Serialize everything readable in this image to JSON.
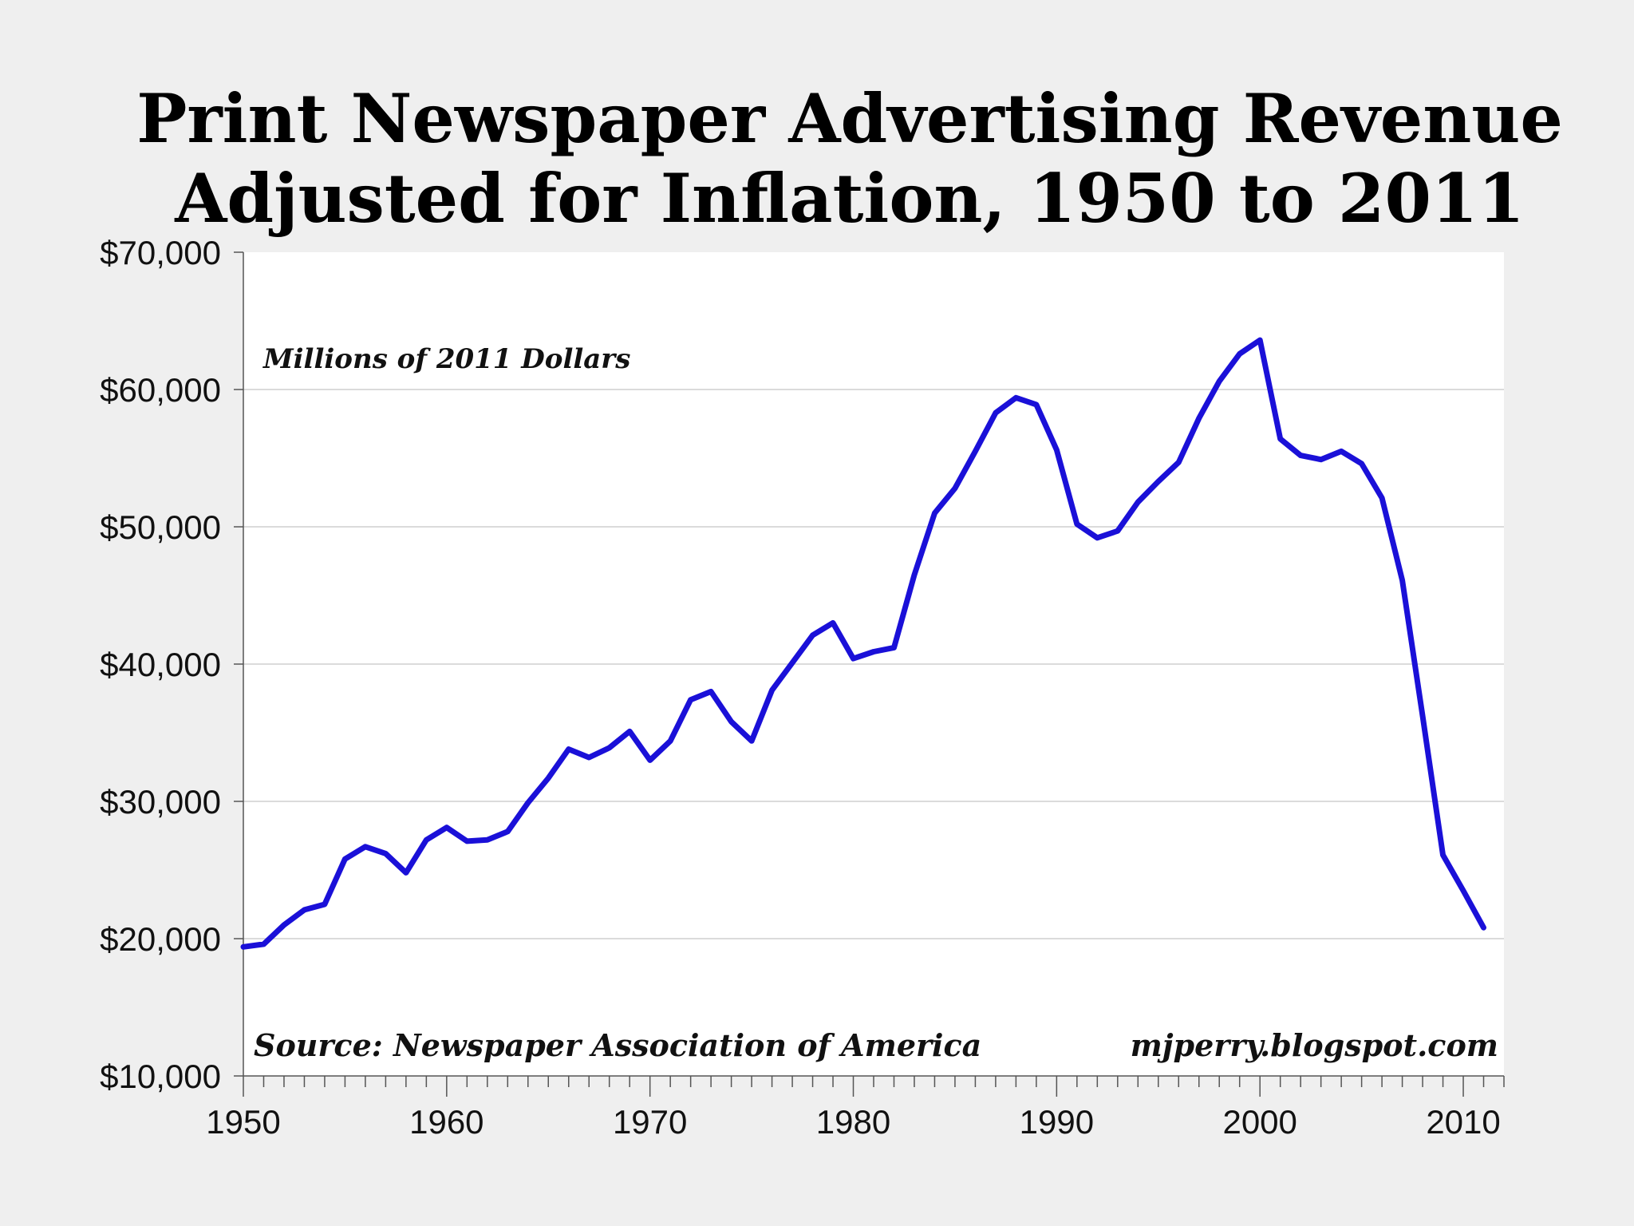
{
  "chart_data": {
    "type": "line",
    "title_line1": "Print Newspaper Advertising Revenue",
    "title_line2": "Adjusted for Inflation, 1950 to 2011",
    "unit_note": "Millions of 2011 Dollars",
    "source": "Source: Newspaper Association of America",
    "credit": "mjperry.blogspot.com",
    "xlabel": "",
    "ylabel": "",
    "xlim": [
      1950,
      2012
    ],
    "ylim": [
      10000,
      70000
    ],
    "x_ticks": [
      {
        "value": 1950,
        "label": "1950"
      },
      {
        "value": 1960,
        "label": "1960"
      },
      {
        "value": 1970,
        "label": "1970"
      },
      {
        "value": 1980,
        "label": "1980"
      },
      {
        "value": 1990,
        "label": "1990"
      },
      {
        "value": 2000,
        "label": "2000"
      },
      {
        "value": 2010,
        "label": "2010"
      }
    ],
    "y_ticks": [
      {
        "value": 10000,
        "label": "$10,000"
      },
      {
        "value": 20000,
        "label": "$20,000"
      },
      {
        "value": 30000,
        "label": "$30,000"
      },
      {
        "value": 40000,
        "label": "$40,000"
      },
      {
        "value": 50000,
        "label": "$50,000"
      },
      {
        "value": 60000,
        "label": "$60,000"
      },
      {
        "value": 70000,
        "label": "$70,000"
      }
    ],
    "grid": true,
    "series": [
      {
        "name": "Print newspaper advertising revenue",
        "color": "#1a10d8",
        "x": [
          1950,
          1951,
          1952,
          1953,
          1954,
          1955,
          1956,
          1957,
          1958,
          1959,
          1960,
          1961,
          1962,
          1963,
          1964,
          1965,
          1966,
          1967,
          1968,
          1969,
          1970,
          1971,
          1972,
          1973,
          1974,
          1975,
          1976,
          1977,
          1978,
          1979,
          1980,
          1981,
          1982,
          1983,
          1984,
          1985,
          1986,
          1987,
          1988,
          1989,
          1990,
          1991,
          1992,
          1993,
          1994,
          1995,
          1996,
          1997,
          1998,
          1999,
          2000,
          2001,
          2002,
          2003,
          2004,
          2005,
          2006,
          2007,
          2008,
          2009,
          2010,
          2011
        ],
        "values": [
          19400,
          19600,
          21000,
          22100,
          22500,
          25800,
          26700,
          26200,
          24800,
          27200,
          28100,
          27100,
          27200,
          27800,
          29900,
          31700,
          33800,
          33200,
          33900,
          35100,
          33000,
          34400,
          37400,
          38000,
          35800,
          34400,
          38100,
          40100,
          42100,
          43000,
          40400,
          40900,
          41200,
          46500,
          51000,
          52800,
          55500,
          58300,
          59400,
          58900,
          55600,
          50200,
          49200,
          49700,
          51800,
          53300,
          54700,
          57900,
          60600,
          62600,
          63600,
          56400,
          55200,
          54900,
          55500,
          54600,
          52100,
          46100,
          36200,
          26100,
          23500,
          20800
        ]
      }
    ]
  }
}
